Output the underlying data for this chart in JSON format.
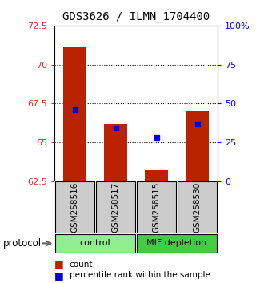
{
  "title": "GDS3626 / ILMN_1704400",
  "samples": [
    "GSM258516",
    "GSM258517",
    "GSM258515",
    "GSM258530"
  ],
  "count_values": [
    71.1,
    66.2,
    63.2,
    67.0
  ],
  "percentile_values": [
    46,
    34,
    28,
    37
  ],
  "groups": [
    {
      "label": "control",
      "color": "#90EE90"
    },
    {
      "label": "MIF depletion",
      "color": "#44CC44"
    }
  ],
  "protocol_label": "protocol",
  "left_ylim": [
    62.5,
    72.5
  ],
  "left_yticks": [
    62.5,
    65.0,
    67.5,
    70.0,
    72.5
  ],
  "left_yticklabels": [
    "62.5",
    "65",
    "67.5",
    "70",
    "72.5"
  ],
  "right_ylim": [
    0,
    100
  ],
  "right_yticks": [
    0,
    25,
    50,
    75,
    100
  ],
  "right_yticklabels": [
    "0",
    "25",
    "50",
    "75",
    "100%"
  ],
  "bar_color": "#BB2200",
  "dot_color": "#0000CC",
  "bar_width": 0.55,
  "count_legend": "count",
  "percentile_legend": "percentile rank within the sample",
  "sample_box_color": "#CCCCCC"
}
